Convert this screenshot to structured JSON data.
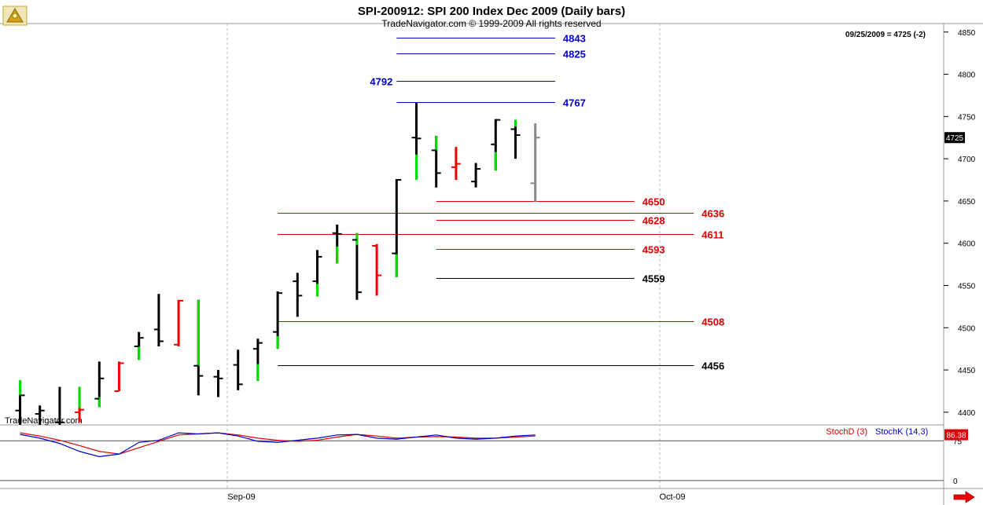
{
  "header": {
    "title": "SPI-200912:  SPI 200 Index Dec 2009  (Daily bars)",
    "copyright": "TradeNavigator.com © 1999-2009 All rights reserved",
    "last_info": "09/25/2009 = 4725 (-2)",
    "watermark": "TradeNavigator.com"
  },
  "colors": {
    "up": "#00dd00",
    "down": "#ee0000",
    "neutral": "#000000",
    "last": "#888888",
    "blue_level": "#0000cc",
    "red_level": "#dd0000",
    "black_level": "#000000",
    "stoch_d": "#dd0000",
    "stoch_k": "#0000cc"
  },
  "chart_data": {
    "type": "ohlc",
    "title": "SPI-200912:  SPI 200 Index Dec 2009  (Daily bars)",
    "ylim": [
      4385,
      4860
    ],
    "y_ticks": [
      4400,
      4450,
      4500,
      4550,
      4600,
      4650,
      4700,
      4750,
      4800,
      4850
    ],
    "x_labels": [
      "Sep-09",
      "Oct-09"
    ],
    "last_price": "4725",
    "bars": [
      {
        "o": 4402,
        "h": 4428,
        "l": 4385,
        "c": 4420,
        "col": "n",
        "up": [
          4420,
          4438
        ]
      },
      {
        "o": 4398,
        "h": 4408,
        "l": 4385,
        "c": 4402,
        "col": "n"
      },
      {
        "o": 4388,
        "h": 4430,
        "l": 4385,
        "c": 4388,
        "col": "n"
      },
      {
        "o": 4400,
        "h": 4430,
        "l": 4388,
        "c": 4403,
        "col": "d",
        "up": [
          4405,
          4430
        ]
      },
      {
        "o": 4416,
        "h": 4460,
        "l": 4406,
        "c": 4440,
        "col": "n",
        "up": [
          4406,
          4418
        ]
      },
      {
        "o": 4425,
        "h": 4460,
        "l": 4425,
        "c": 4458,
        "col": "d"
      },
      {
        "o": 4478,
        "h": 4495,
        "l": 4462,
        "c": 4488,
        "col": "n",
        "up": [
          4462,
          4478
        ]
      },
      {
        "o": 4498,
        "h": 4540,
        "l": 4478,
        "c": 4484,
        "col": "n"
      },
      {
        "o": 4480,
        "h": 4533,
        "l": 4478,
        "c": 4532,
        "col": "d"
      },
      {
        "o": 4455,
        "h": 4533,
        "l": 4420,
        "c": 4443,
        "col": "n",
        "up": [
          4455,
          4533
        ]
      },
      {
        "o": 4442,
        "h": 4450,
        "l": 4418,
        "c": 4440,
        "col": "n"
      },
      {
        "o": 4456,
        "h": 4474,
        "l": 4426,
        "c": 4433,
        "col": "n"
      },
      {
        "o": 4475,
        "h": 4487,
        "l": 4437,
        "c": 4482,
        "col": "n",
        "up": [
          4437,
          4457
        ]
      },
      {
        "o": 4495,
        "h": 4543,
        "l": 4475,
        "c": 4541,
        "col": "n",
        "up": [
          4475,
          4490
        ]
      },
      {
        "o": 4555,
        "h": 4565,
        "l": 4513,
        "c": 4538,
        "col": "n"
      },
      {
        "o": 4555,
        "h": 4592,
        "l": 4537,
        "c": 4584,
        "col": "n",
        "up": [
          4537,
          4552
        ]
      },
      {
        "o": 4612,
        "h": 4622,
        "l": 4576,
        "c": 4611,
        "col": "n",
        "up": [
          4576,
          4596
        ]
      },
      {
        "o": 4604,
        "h": 4612,
        "l": 4533,
        "c": 4542,
        "col": "n",
        "up": [
          4598,
          4612
        ]
      },
      {
        "o": 4597,
        "h": 4599,
        "l": 4538,
        "c": 4562,
        "col": "d"
      },
      {
        "o": 4588,
        "h": 4676,
        "l": 4560,
        "c": 4675,
        "col": "n",
        "up": [
          4560,
          4587
        ]
      },
      {
        "o": 4725,
        "h": 4766,
        "l": 4675,
        "c": 4724,
        "col": "n",
        "up": [
          4675,
          4705
        ]
      },
      {
        "o": 4710,
        "h": 4727,
        "l": 4666,
        "c": 4683,
        "col": "n",
        "up": [
          4710,
          4727
        ]
      },
      {
        "o": 4690,
        "h": 4714,
        "l": 4675,
        "c": 4694,
        "col": "d"
      },
      {
        "o": 4673,
        "h": 4695,
        "l": 4666,
        "c": 4688,
        "col": "n"
      },
      {
        "o": 4717,
        "h": 4747,
        "l": 4686,
        "c": 4746,
        "col": "n",
        "up": [
          4686,
          4708
        ]
      },
      {
        "o": 4735,
        "h": 4746,
        "l": 4700,
        "c": 4728,
        "col": "n",
        "up": [
          4738,
          4746
        ]
      },
      {
        "o": 4671,
        "h": 4742,
        "l": 4649,
        "c": 4725,
        "col": "g"
      }
    ],
    "levels": [
      {
        "label": "4843",
        "value": 4843,
        "color": "blue",
        "from": 19.0,
        "to": 27.0
      },
      {
        "label": "4825",
        "value": 4825,
        "color": "blue",
        "from": 19.0,
        "to": 27.0
      },
      {
        "label": "4792",
        "value": 4792,
        "color": "blue",
        "from": 19.0,
        "to": 27.0,
        "label_left": true
      },
      {
        "label": "4767",
        "value": 4767,
        "color": "blue",
        "from": 19.0,
        "to": 27.0
      },
      {
        "label": "4650",
        "value": 4650,
        "color": "red",
        "from": 21.0,
        "to": 31.0
      },
      {
        "label": "4636",
        "value": 4636,
        "color": "red",
        "from": 13.0,
        "to": 34.0
      },
      {
        "label": "4628",
        "value": 4628,
        "color": "red",
        "from": 21.0,
        "to": 31.0
      },
      {
        "label": "4611",
        "value": 4611,
        "color": "red",
        "from": 13.0,
        "to": 34.0
      },
      {
        "label": "4593",
        "value": 4593,
        "color": "red",
        "from": 21.0,
        "to": 31.0
      },
      {
        "label": "4559",
        "value": 4559,
        "color": "black",
        "from": 21.0,
        "to": 31.0
      },
      {
        "label": "4508",
        "value": 4508,
        "color": "red",
        "from": 13.0,
        "to": 34.0
      },
      {
        "label": "4456",
        "value": 4456,
        "color": "black",
        "from": 13.0,
        "to": 34.0
      }
    ],
    "stochastic": {
      "legend_d": "StochD (3)",
      "legend_k": "StochK (14,3)",
      "last_value": "86.38",
      "ylim": [
        -15,
        105
      ],
      "y_ticks": [
        0,
        75
      ],
      "y_tick_labels": [
        "0",
        "75"
      ],
      "k": [
        87,
        80,
        70,
        55,
        45,
        50,
        72,
        76,
        90,
        88,
        90,
        84,
        74,
        72,
        76,
        80,
        86,
        87,
        80,
        78,
        82,
        86,
        80,
        78,
        80,
        84,
        86
      ],
      "d": [
        90,
        84,
        76,
        66,
        55,
        50,
        62,
        74,
        86,
        88,
        90,
        86,
        80,
        76,
        74,
        76,
        82,
        87,
        84,
        80,
        82,
        83,
        82,
        80,
        80,
        82,
        84
      ]
    }
  }
}
